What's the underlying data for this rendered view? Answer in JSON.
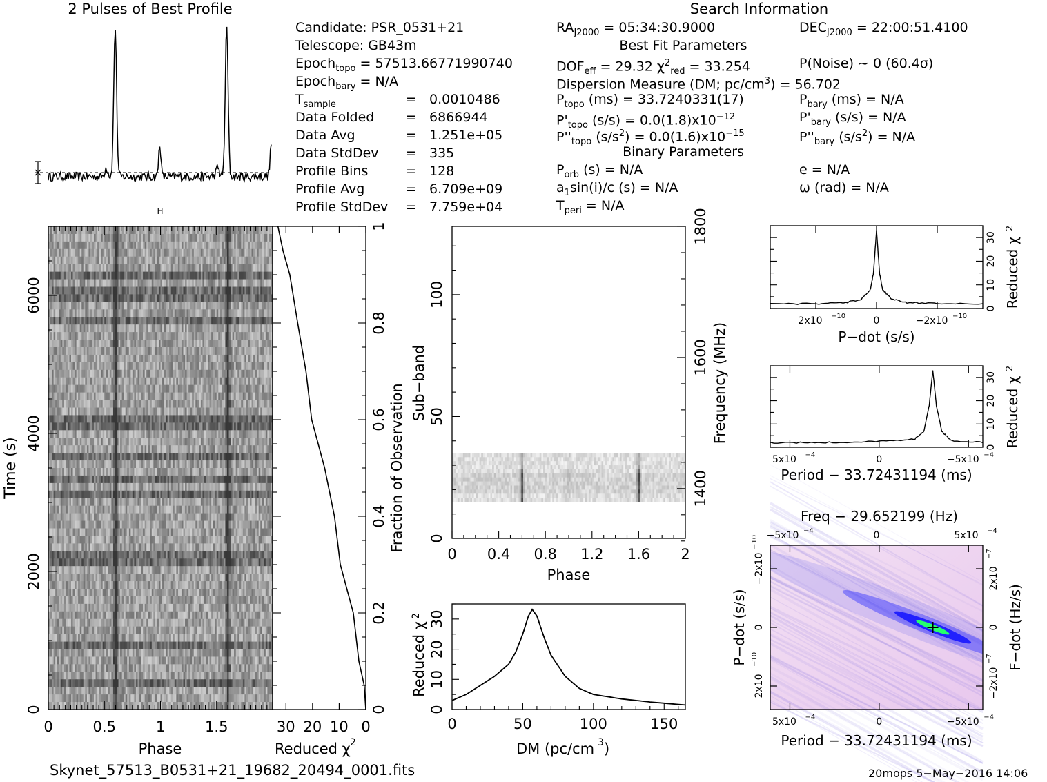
{
  "header": {
    "profile_title": "2 Pulses of Best Profile",
    "search_title": "Search Information",
    "best_fit_title": "Best Fit Parameters",
    "binary_title": "Binary Parameters"
  },
  "info_left": {
    "candidate": "Candidate:  PSR_0531+21",
    "telescope": "Telescope:  GB43m",
    "epoch_topo": "= 57513.66771990740",
    "epoch_bary": "= N/A",
    "t_sample_value": "0.0010486",
    "data_folded_value": "6866944",
    "data_avg_value": "1.251e+05",
    "data_stddev_value": "335",
    "profile_bins_value": "128",
    "profile_avg_value": "6.709e+09",
    "profile_stddev_value": "7.759e+04",
    "rows": [
      {
        "label": "Data Folded",
        "value": "6866944"
      },
      {
        "label": "Data Avg",
        "value": "1.251e+05"
      },
      {
        "label": "Data StdDev",
        "value": "335"
      },
      {
        "label": "Profile Bins",
        "value": "128"
      },
      {
        "label": "Profile Avg",
        "value": "6.709e+09"
      },
      {
        "label": "Profile StdDev",
        "value": "7.759e+04"
      }
    ]
  },
  "info_right": {
    "ra": "= 05:34:30.9000",
    "dec": "= 22:00:51.4100",
    "dof_eff": "= 29.32",
    "chi2_red": "= 33.254",
    "p_noise": "P(Noise) ~ 0   (60.4σ)",
    "dm": "Dispersion Measure (DM; pc/cm",
    "dm_value": ") = 56.702",
    "p_topo": "(ms) =  33.7240331(17)",
    "p_bary": "(ms) = N/A",
    "pd_topo": "(s/s) = 0.0(1.8)x10",
    "pd_topo_exp": "−12",
    "pd_bary": "(s/s) = N/A",
    "pdd_topo": "(s/s",
    "pdd_topo_val": ") = 0.0(1.6)x10",
    "pdd_topo_exp": "−15",
    "pdd_bary": "(s/s",
    "pdd_bary_val": ") = N/A",
    "p_orb": "(s) = N/A",
    "a1sini": "sin(i)/c (s) = N/A",
    "t_peri": "= N/A",
    "e": "e = N/A",
    "omega": "ω (rad) = N/A"
  },
  "footer": {
    "filename": "Skynet_57513_B0531+21_19682_20494_0001.fits",
    "stamp": "20mops   5−May−2016 14:06"
  },
  "colors": {
    "axis": "#000000",
    "dm_trace": "#000000",
    "heat_low": "#f7e8f6",
    "heat_mid": "#1010ff",
    "heat_high": "#26ff6c"
  },
  "chart_data": [
    {
      "type": "line",
      "id": "profile",
      "title": "2 Pulses of Best Profile",
      "xlabel": "",
      "ylabel": "",
      "x_range": [
        0,
        2
      ],
      "peaks_phase": [
        0.6,
        1.0,
        1.6,
        2.0
      ],
      "peak_heights_rel": [
        1.0,
        0.22,
        1.0,
        0.22
      ],
      "baseline_rel": 0.08,
      "dashed_mean": true
    },
    {
      "type": "heatmap",
      "id": "time-phase",
      "xlabel": "Phase",
      "ylabel": "Time (s)",
      "xticks": [
        "0",
        "0.5",
        "1",
        "1.5"
      ],
      "yticks": [
        "0",
        "2000",
        "4000",
        "6000"
      ],
      "x_range": [
        0,
        2
      ],
      "y_range": [
        0,
        7000
      ],
      "pulse_phases": [
        0.6,
        1.6
      ]
    },
    {
      "type": "line",
      "id": "time-chi2",
      "xlabel": "Reduced χ2",
      "xticks": [
        "30",
        "20",
        "10",
        "0"
      ],
      "x_range": [
        35,
        0
      ],
      "ylabel_right": "Fraction of Observation",
      "yticks_right": [
        "0",
        "0.2",
        "0.4",
        "0.6",
        "0.8",
        "1"
      ],
      "fraction": [
        0,
        0.05,
        0.1,
        0.2,
        0.3,
        0.4,
        0.5,
        0.6,
        0.7,
        0.8,
        0.9,
        0.95,
        1.0
      ],
      "chi2": [
        0,
        0.5,
        2,
        5,
        9,
        12,
        16,
        20,
        23,
        26,
        29,
        31,
        33
      ]
    },
    {
      "type": "heatmap",
      "id": "subband-phase",
      "xlabel": "Phase",
      "ylabel": "Sub−band",
      "ylabel_right": "Frequency (MHz)",
      "xticks": [
        "0",
        "0.4",
        "0.8",
        "1.2",
        "1.6",
        "2"
      ],
      "yticks": [
        "0",
        "50",
        "100"
      ],
      "yticks_right": [
        "1400",
        "1600",
        "1800"
      ],
      "x_range": [
        0,
        2
      ],
      "y_range": [
        0,
        128
      ],
      "band_subbands": [
        15,
        35
      ],
      "pulse_phases": [
        0.6,
        1.0,
        1.6
      ]
    },
    {
      "type": "line",
      "id": "dm-chi2",
      "xlabel": "DM (pc/cm3)",
      "ylabel": "Reduced χ2",
      "xticks": [
        "0",
        "50",
        "100",
        "150"
      ],
      "yticks": [
        "0",
        "10",
        "20",
        "30"
      ],
      "x_range": [
        0,
        165
      ],
      "y_range": [
        0,
        35
      ],
      "x": [
        0,
        10,
        20,
        30,
        40,
        45,
        50,
        54,
        56.7,
        60,
        65,
        70,
        80,
        90,
        100,
        120,
        140,
        165
      ],
      "y": [
        3,
        5,
        8,
        11,
        15,
        19,
        25,
        31,
        33.2,
        31,
        24,
        18,
        11,
        7,
        5,
        3.5,
        2.5,
        1.5
      ]
    },
    {
      "type": "line",
      "id": "pdot-chi2",
      "xlabel": "P−dot (s/s)",
      "ylabel": "Reduced χ2",
      "xticks": [
        "2x10−10",
        "0",
        "−2x10−10"
      ],
      "yticks": [
        "0",
        "10",
        "20",
        "30"
      ],
      "x_range": [
        3.5e-10,
        -3.5e-10
      ],
      "y_range": [
        0,
        35
      ],
      "x": [
        3.5e-10,
        2e-10,
        1e-10,
        5e-11,
        2e-11,
        1e-11,
        0,
        -1e-11,
        -2e-11,
        -5e-11,
        -1e-10,
        -2e-10,
        -3.5e-10
      ],
      "y": [
        2,
        2,
        2.5,
        4,
        8,
        15,
        33,
        15,
        8,
        4,
        2.5,
        2,
        2
      ]
    },
    {
      "type": "line",
      "id": "period-chi2",
      "xlabel": "Period − 33.72431194 (ms)",
      "ylabel": "Reduced χ2",
      "xticks": [
        "5x10−4",
        "0",
        "−5x10−4"
      ],
      "yticks": [
        "0",
        "10",
        "20",
        "30"
      ],
      "x_range": [
        0.00061,
        -0.00058
      ],
      "y_range": [
        0,
        35
      ],
      "x": [
        0.00061,
        0.0004,
        0.0002,
        0,
        -0.0002,
        -0.00025,
        -0.00028,
        -0.0003,
        -0.00032,
        -0.00035,
        -0.0004,
        -0.00058
      ],
      "y": [
        2,
        2,
        2.2,
        2.5,
        3.5,
        7,
        18,
        33,
        18,
        7,
        3,
        2
      ]
    },
    {
      "type": "heatmap",
      "id": "period-pdot",
      "title": "Freq − 29.652199 (Hz)",
      "xlabel": "Period − 33.72431194 (ms)",
      "ylabel": "P−dot (s/s)",
      "ylabel_right": "F−dot (Hz/s)",
      "xticks": [
        "5x10−4",
        "0",
        "−5x10−4"
      ],
      "xticks_top": [
        "−5x10−4",
        "0",
        "5x10−4"
      ],
      "yticks": [
        "2x10−10",
        "0",
        "−2x10−10"
      ],
      "yticks_right": [
        "−2x10−7",
        "0",
        "2x10−7"
      ],
      "best_period_offset": -0.0003,
      "best_pdot": 0
    }
  ]
}
